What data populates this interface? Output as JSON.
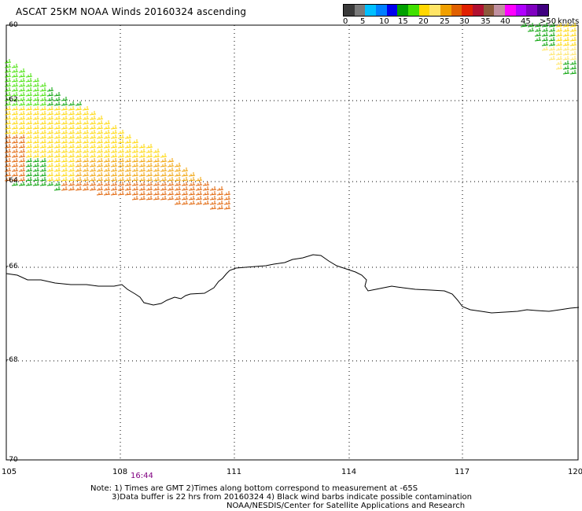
{
  "title": "ASCAT 25KM NOAA Winds 20160324 ascending",
  "legend": {
    "colors": [
      "#3a3a3a",
      "#7a7a7a",
      "#00bfff",
      "#007fff",
      "#0000ee",
      "#00a000",
      "#40e000",
      "#ffd700",
      "#ffe566",
      "#f0a000",
      "#e06000",
      "#e02000",
      "#b01030",
      "#8b5a3c",
      "#c090a0",
      "#ff00ff",
      "#b000ff",
      "#8000c0",
      "#400080"
    ],
    "ticks": [
      "0",
      "5",
      "10",
      "15",
      "20",
      "25",
      "30",
      "35",
      "40",
      "45",
      ">50"
    ],
    "unit": "knots"
  },
  "lat_labels": [
    "-60",
    "-62",
    "-64",
    "-66",
    "-68",
    "-70"
  ],
  "lon_labels": [
    "105",
    "108",
    "111",
    "114",
    "117",
    "120"
  ],
  "times": [
    "16:44"
  ],
  "notes": {
    "line1": "Note: 1) Times are GMT 2)Times along bottom correspond to measurement at -65S",
    "line2": "3)Data buffer is 22 hrs from 20160324 4) Black wind barbs indicate possible contamination",
    "line3": "NOAA/NESDIS/Center for Satellite Applications and Research"
  }
}
